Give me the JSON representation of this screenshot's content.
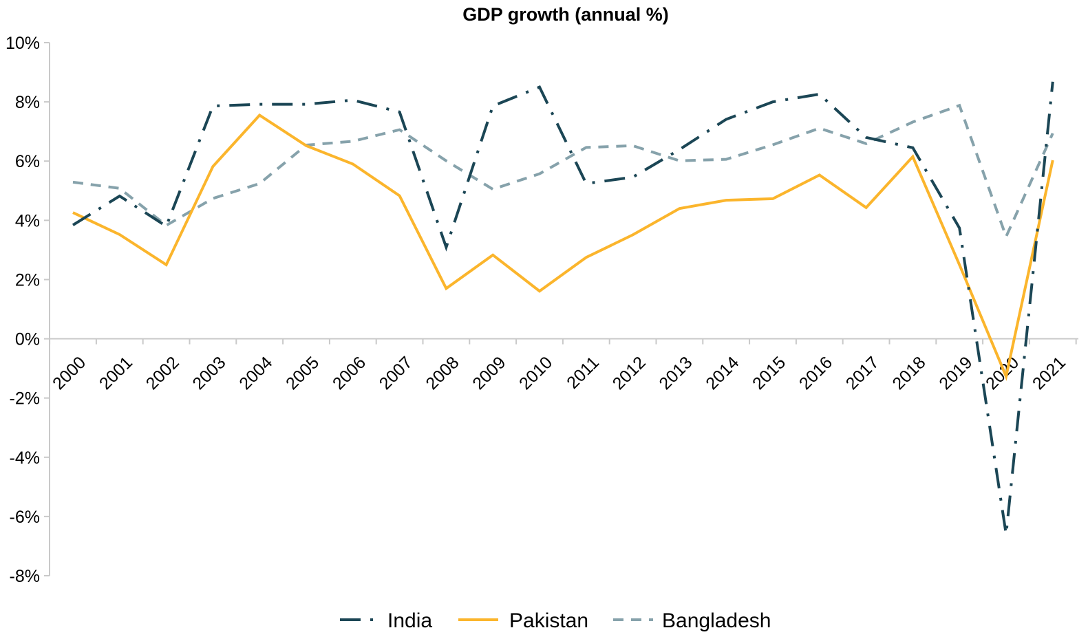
{
  "chart_data": {
    "type": "line",
    "title": "GDP growth (annual %)",
    "xlabel": "",
    "ylabel": "",
    "x": [
      "2000",
      "2001",
      "2002",
      "2003",
      "2004",
      "2005",
      "2006",
      "2007",
      "2008",
      "2009",
      "2010",
      "2011",
      "2012",
      "2013",
      "2014",
      "2015",
      "2016",
      "2017",
      "2018",
      "2019",
      "2020",
      "2021"
    ],
    "ylim": [
      -8,
      10
    ],
    "yticks": [
      10,
      8,
      6,
      4,
      2,
      0,
      -2,
      -4,
      -6,
      -8
    ],
    "ytick_labels": [
      "10%",
      "8%",
      "6%",
      "4%",
      "2%",
      "0%",
      "-2%",
      "-4%",
      "-6%",
      "-8%"
    ],
    "series": [
      {
        "name": "India",
        "color": "#1b4655",
        "dash": "long-dash-dot",
        "values": [
          3.84,
          4.82,
          3.8,
          7.86,
          7.92,
          7.92,
          8.06,
          7.66,
          3.09,
          7.86,
          8.5,
          5.24,
          5.46,
          6.39,
          7.41,
          8.0,
          8.26,
          6.8,
          6.45,
          3.74,
          -6.6,
          8.68
        ]
      },
      {
        "name": "Pakistan",
        "color": "#fbb52c",
        "dash": "solid",
        "values": [
          4.26,
          3.52,
          2.5,
          5.82,
          7.55,
          6.52,
          5.9,
          4.83,
          1.7,
          2.83,
          1.61,
          2.75,
          3.51,
          4.4,
          4.68,
          4.73,
          5.53,
          4.43,
          6.15,
          2.5,
          -1.27,
          6.03
        ]
      },
      {
        "name": "Bangladesh",
        "color": "#86a2ab",
        "dash": "short-dash",
        "values": [
          5.29,
          5.08,
          3.83,
          4.74,
          5.24,
          6.54,
          6.67,
          7.06,
          6.01,
          5.05,
          5.57,
          6.46,
          6.52,
          6.01,
          6.06,
          6.55,
          7.11,
          6.59,
          7.32,
          7.88,
          3.45,
          6.94
        ]
      }
    ],
    "legend": {
      "position": "bottom",
      "entries": [
        "India",
        "Pakistan",
        "Bangladesh"
      ]
    },
    "grid": false
  }
}
